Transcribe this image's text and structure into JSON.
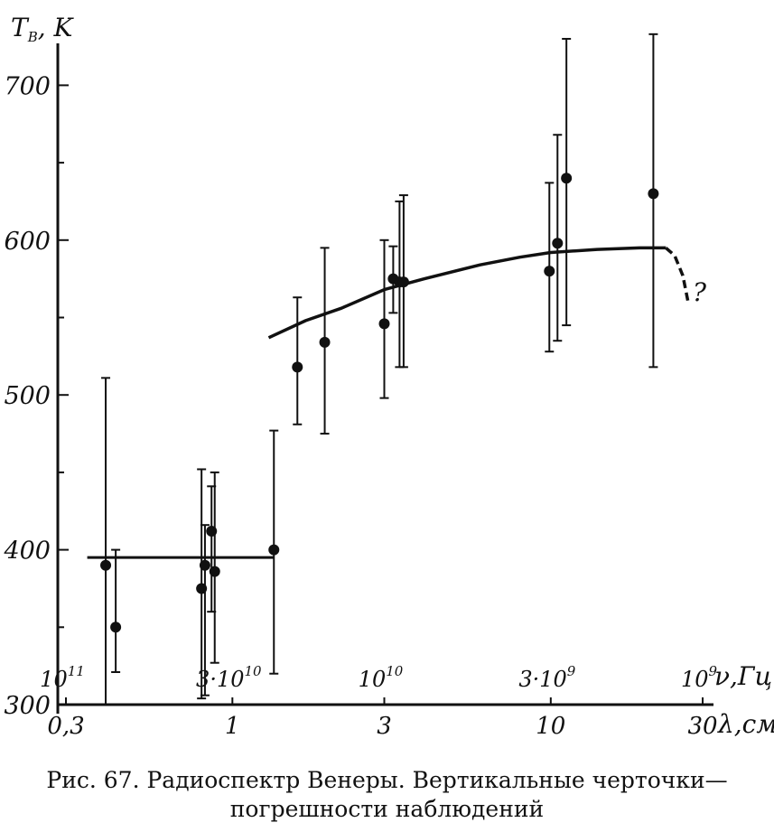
{
  "chart_data": {
    "type": "scatter",
    "title": "",
    "ylabel": "T",
    "ylabel_sub": "B",
    "ylabel_unit": ", K",
    "ylim": [
      300,
      720
    ],
    "yticks": [
      "300",
      "400",
      "500",
      "600",
      "700"
    ],
    "yticks_values": [
      300,
      400,
      500,
      600,
      700
    ],
    "x_scale": "log",
    "xlim_cm": [
      0.3,
      30
    ],
    "xticks_cm": [
      {
        "value": 0.3,
        "label": "0,3"
      },
      {
        "value": 1,
        "label": "1"
      },
      {
        "value": 3,
        "label": "3"
      },
      {
        "value": 10,
        "label": "10"
      },
      {
        "value": 30,
        "label": "30"
      }
    ],
    "xlabel": "λ,см",
    "freq_ticks": [
      {
        "cm": 0.3,
        "mant": "10",
        "exp": "11"
      },
      {
        "cm": 1,
        "mant": "3·10",
        "exp": "10"
      },
      {
        "cm": 3,
        "mant": "10",
        "exp": "10"
      },
      {
        "cm": 10,
        "mant": "3·10",
        "exp": "9"
      },
      {
        "cm": 30,
        "mant": "10",
        "exp": "9"
      }
    ],
    "freq_label": "ν,Гц",
    "points": [
      {
        "x": 0.4,
        "y": 390,
        "lo": 300,
        "hi": 511
      },
      {
        "x": 0.43,
        "y": 350,
        "lo": 321,
        "hi": 400
      },
      {
        "x": 0.8,
        "y": 375,
        "lo": 304,
        "hi": 452
      },
      {
        "x": 0.82,
        "y": 390,
        "lo": 306,
        "hi": 416
      },
      {
        "x": 0.86,
        "y": 412,
        "lo": 360,
        "hi": 441
      },
      {
        "x": 0.88,
        "y": 386,
        "lo": 327,
        "hi": 450
      },
      {
        "x": 1.35,
        "y": 400,
        "lo": 320,
        "hi": 477
      },
      {
        "x": 1.6,
        "y": 518,
        "lo": 481,
        "hi": 563
      },
      {
        "x": 1.95,
        "y": 534,
        "lo": 475,
        "hi": 595
      },
      {
        "x": 3.0,
        "y": 546,
        "lo": 498,
        "hi": 600
      },
      {
        "x": 3.2,
        "y": 575,
        "lo": 553,
        "hi": 596
      },
      {
        "x": 3.35,
        "y": 573,
        "lo": 518,
        "hi": 625
      },
      {
        "x": 3.45,
        "y": 573,
        "lo": 518,
        "hi": 629
      },
      {
        "x": 9.9,
        "y": 580,
        "lo": 528,
        "hi": 637
      },
      {
        "x": 10.5,
        "y": 598,
        "lo": 535,
        "hi": 668
      },
      {
        "x": 11.2,
        "y": 640,
        "lo": 545,
        "hi": 730
      },
      {
        "x": 21.0,
        "y": 630,
        "lo": 518,
        "hi": 733
      }
    ],
    "flat_line": {
      "x": [
        0.35,
        1.35
      ],
      "y": 395
    },
    "curve": [
      [
        1.3,
        537
      ],
      [
        1.7,
        548
      ],
      [
        2.2,
        556
      ],
      [
        3.0,
        568
      ],
      [
        4.0,
        575
      ],
      [
        6.0,
        584
      ],
      [
        8.0,
        589
      ],
      [
        10.0,
        592
      ],
      [
        14.0,
        594
      ],
      [
        19.0,
        595
      ],
      [
        23.0,
        595
      ]
    ],
    "curve_dashed": [
      [
        23.0,
        595
      ],
      [
        24.5,
        590
      ],
      [
        26.0,
        577
      ],
      [
        27.0,
        560
      ]
    ],
    "annotation": "?"
  },
  "caption": {
    "line1": "Рис. 67. Радиоспектр Венеры. Вертикальные черточки—",
    "line2": "погрешности наблюдений"
  }
}
